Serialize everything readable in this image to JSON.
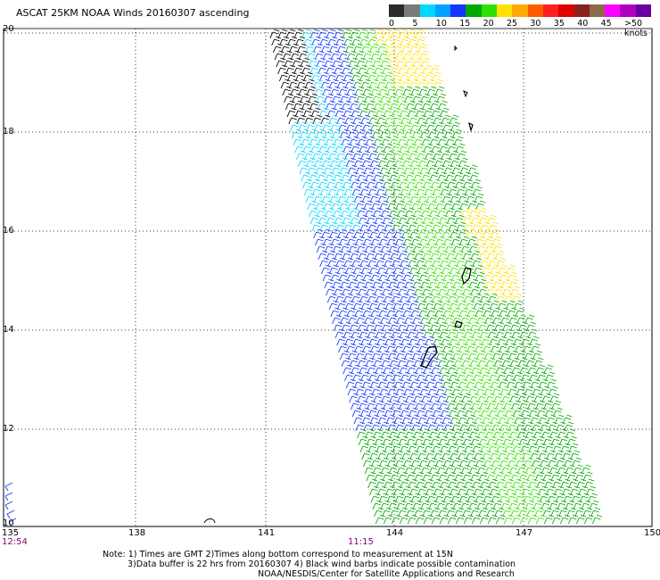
{
  "title": "ASCAT 25KM NOAA Winds 20160307 ascending",
  "legend": {
    "labels": [
      "0",
      "5",
      "10",
      "15",
      "20",
      "25",
      "30",
      "35",
      "40",
      "45",
      ">50 knots"
    ],
    "colors": [
      "#2b2b2b",
      "#7a7a7a",
      "#00d8ff",
      "#00a2ff",
      "#1436ff",
      "#00a800",
      "#30e000",
      "#ffe000",
      "#ffa800",
      "#ff5a00",
      "#ff2020",
      "#e00000",
      "#8b2020",
      "#8b6b4a",
      "#ff00ff",
      "#b000c0",
      "#6a00a0"
    ]
  },
  "axes": {
    "x_ticks": [
      "135",
      "138",
      "141",
      "144",
      "147",
      "150"
    ],
    "y_ticks": [
      "20",
      "18",
      "16",
      "14",
      "12",
      "10"
    ]
  },
  "times": {
    "left": "12:54",
    "center": "11:15"
  },
  "notes": [
    "Note: 1) Times are GMT 2)Times along bottom correspond to measurement at 15N",
    "3)Data buffer is 22 hrs from 20160307 4) Black wind barbs indicate possible contamination",
    "NOAA/NESDIS/Center for Satellite Applications and Research"
  ],
  "wind_colors": {
    "black": "#000000",
    "cyan": "#00d8ff",
    "blue": "#1436ff",
    "dark_blue": "#0000b0",
    "green": "#00a800",
    "light_green": "#30e000",
    "yellow": "#ffe000"
  }
}
